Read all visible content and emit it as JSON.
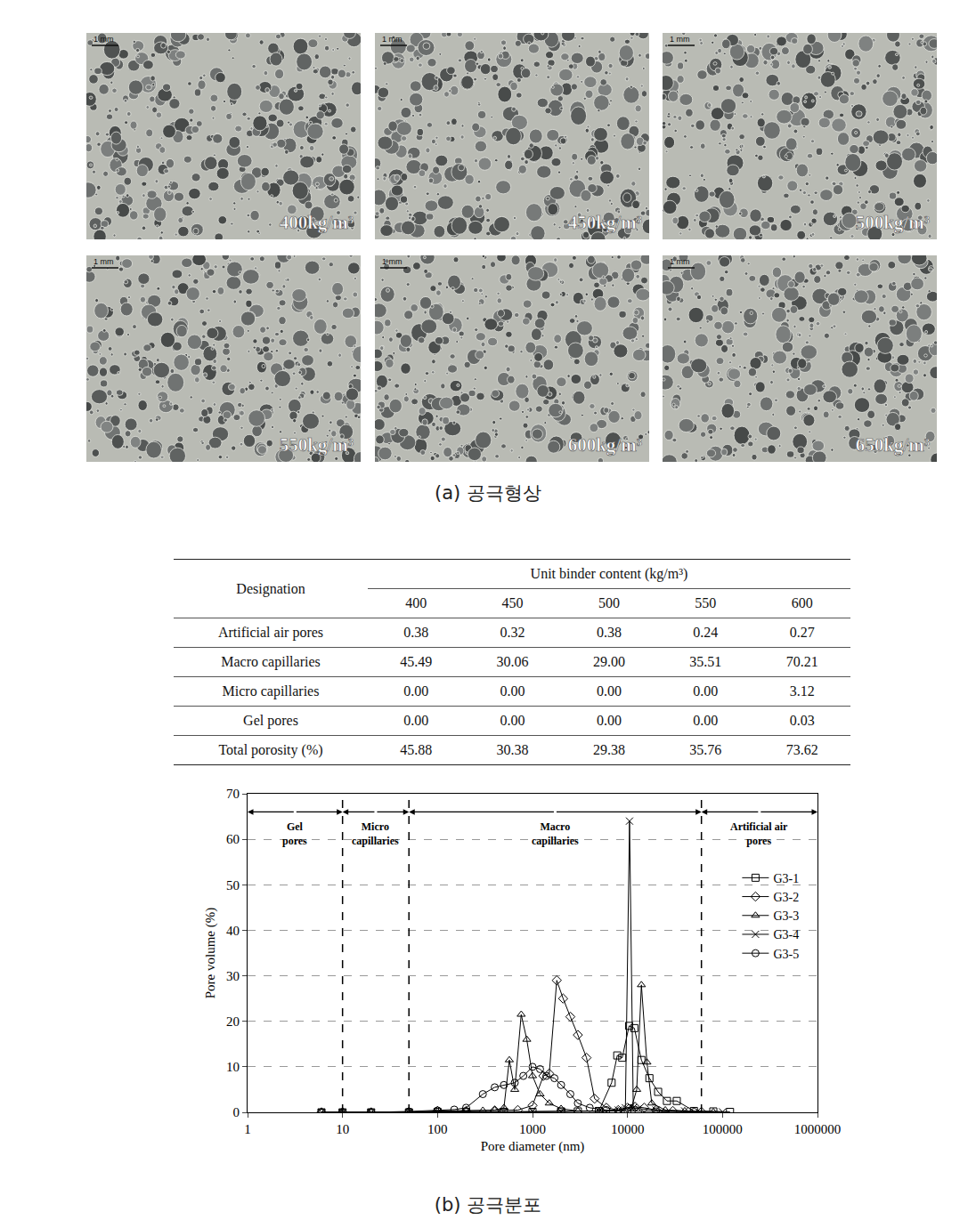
{
  "panel_a": {
    "caption": "(a) 공극형상",
    "scale_label": "1 mm",
    "images": [
      "400kg/m³",
      "450kg/m³",
      "500kg/m³",
      "550kg/m³",
      "600kg/m³",
      "650kg/m³"
    ]
  },
  "table": {
    "header": {
      "designation": "Designation",
      "group": "Unit binder content (kg/m³)",
      "columns": [
        "400",
        "450",
        "500",
        "550",
        "600"
      ]
    },
    "rows": [
      [
        "Artificial air pores",
        "0.38",
        "0.32",
        "0.38",
        "0.24",
        "0.27"
      ],
      [
        "Macro capillaries",
        "45.49",
        "30.06",
        "29.00",
        "35.51",
        "70.21"
      ],
      [
        "Micro capillaries",
        "0.00",
        "0.00",
        "0.00",
        "0.00",
        "3.12"
      ],
      [
        "Gel pores",
        "0.00",
        "0.00",
        "0.00",
        "0.00",
        "0.03"
      ],
      [
        "Total porosity (%)",
        "45.88",
        "30.38",
        "29.38",
        "35.76",
        "73.62"
      ]
    ]
  },
  "panel_b_caption": "(b) 공극분포",
  "chart_data": {
    "type": "line",
    "x_label": "Pore diameter (nm)",
    "y_label": "Pore volume (%)",
    "log": "x",
    "grid": true,
    "legend": "upper right",
    "xlim": [
      1,
      1000000
    ],
    "xticks": [
      1,
      10,
      100,
      1000,
      10000,
      100000,
      1000000
    ],
    "ylim": [
      0,
      70
    ],
    "yticks": [
      0,
      10,
      20,
      30,
      40,
      50,
      60,
      70
    ],
    "regions": [
      {
        "label": "Gel\npores",
        "from": 1,
        "to": 10
      },
      {
        "label": "Micro\ncapillaries",
        "from": 10,
        "to": 50
      },
      {
        "label": "Macro\ncapillaries",
        "from": 50,
        "to": 60000
      },
      {
        "label": "Artificial air\npores",
        "from": 60000,
        "to": 1000000
      }
    ],
    "series": [
      {
        "name": "G3-1",
        "marker": "square",
        "color": "#000000",
        "x": [
          6,
          10,
          20,
          50,
          100,
          200,
          500,
          1000,
          2000,
          3000,
          5000,
          6800,
          7800,
          8800,
          10400,
          11800,
          14000,
          17000,
          21000,
          26000,
          33000,
          50000,
          80000,
          120000
        ],
        "values": [
          0,
          0,
          0,
          0,
          0.1,
          0.1,
          0.1,
          0.1,
          0.2,
          0.2,
          0.3,
          6.5,
          12.5,
          12,
          19,
          18.5,
          11.5,
          7.5,
          4.5,
          2.5,
          2.5,
          0.3,
          0.2,
          0.1
        ]
      },
      {
        "name": "G3-2",
        "marker": "diamond",
        "color": "#000000",
        "x": [
          6,
          10,
          20,
          50,
          100,
          200,
          400,
          700,
          1000,
          1300,
          1500,
          1800,
          2100,
          2500,
          3000,
          3700,
          4500,
          6000,
          8000,
          10000,
          12000,
          15000,
          20000,
          30000,
          60000
        ],
        "values": [
          0,
          0,
          0,
          0,
          0.3,
          0.3,
          0.4,
          0.5,
          1.5,
          8,
          8.5,
          29,
          25,
          21,
          17,
          12,
          3,
          1,
          0.5,
          1,
          1.2,
          1,
          0.5,
          0.3,
          0.1
        ]
      },
      {
        "name": "G3-3",
        "marker": "triangle",
        "color": "#000000",
        "x": [
          6,
          10,
          20,
          50,
          100,
          200,
          300,
          400,
          500,
          570,
          650,
          760,
          870,
          1000,
          1200,
          1500,
          2000,
          3000,
          5000,
          8000,
          11000,
          12500,
          14000,
          16000,
          18000,
          25000,
          40000,
          80000
        ],
        "values": [
          0,
          0,
          0,
          0,
          0.2,
          0.3,
          0.4,
          0.5,
          1,
          11.5,
          5,
          21.5,
          16,
          8,
          4,
          2,
          0.8,
          0.3,
          0.2,
          0.3,
          1,
          5,
          28,
          11,
          2,
          0.5,
          0.3,
          0.1
        ]
      },
      {
        "name": "G3-4",
        "marker": "x",
        "color": "#000000",
        "x": [
          6,
          10,
          20,
          50,
          100,
          200,
          500,
          1000,
          2000,
          5000,
          8000,
          9500,
          10500,
          11500,
          13000,
          20000,
          40000,
          100000
        ],
        "values": [
          0,
          0,
          0,
          0,
          0,
          0,
          0.1,
          0.2,
          0.2,
          0.3,
          0.5,
          1,
          64,
          1,
          0.8,
          0.5,
          0.3,
          0.1
        ]
      },
      {
        "name": "G3-5",
        "marker": "circle",
        "color": "#000000",
        "x": [
          6,
          10,
          20,
          50,
          100,
          150,
          200,
          300,
          400,
          500,
          650,
          800,
          1000,
          1200,
          1400,
          1700,
          2000,
          2500,
          3000,
          4000,
          6000,
          10000,
          20000,
          50000
        ],
        "values": [
          0,
          0,
          0,
          0.2,
          0.4,
          0.6,
          1,
          4,
          5.5,
          6,
          6.5,
          8,
          10,
          9.5,
          8,
          7.5,
          6,
          4,
          2,
          1,
          0.5,
          0.3,
          0.2,
          0.1
        ]
      }
    ]
  }
}
